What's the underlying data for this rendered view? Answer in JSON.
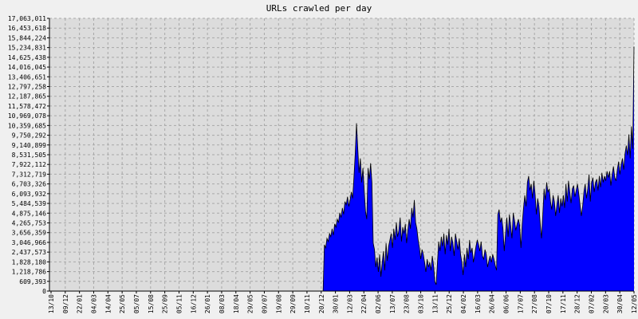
{
  "chart_data": {
    "type": "area",
    "title": "URLs crawled per day",
    "xlabel": "",
    "ylabel": "",
    "ylim": [
      0,
      17063011
    ],
    "grid": true,
    "colors": {
      "fill": "#0000ff",
      "outline": "#000000",
      "plot_bg": "#dcdcdc",
      "grid": "#a8a8a8",
      "page_bg": "#f0f0f0"
    },
    "y_ticks": [
      {
        "value": 0,
        "label": "0"
      },
      {
        "value": 609393,
        "label": "609,393"
      },
      {
        "value": 1218786,
        "label": "1,218,786"
      },
      {
        "value": 1828180,
        "label": "1,828,180"
      },
      {
        "value": 2437573,
        "label": "2,437,573"
      },
      {
        "value": 3046966,
        "label": "3,046,966"
      },
      {
        "value": 3656359,
        "label": "3,656,359"
      },
      {
        "value": 4265753,
        "label": "4,265,753"
      },
      {
        "value": 4875146,
        "label": "4,875,146"
      },
      {
        "value": 5484539,
        "label": "5,484,539"
      },
      {
        "value": 6093932,
        "label": "6,093,932"
      },
      {
        "value": 6703326,
        "label": "6,703,326"
      },
      {
        "value": 7312719,
        "label": "7,312,719"
      },
      {
        "value": 7922112,
        "label": "7,922,112"
      },
      {
        "value": 8531505,
        "label": "8,531,505"
      },
      {
        "value": 9140899,
        "label": "9,140,899"
      },
      {
        "value": 9750292,
        "label": "9,750,292"
      },
      {
        "value": 10359685,
        "label": "10,359,685"
      },
      {
        "value": 10969078,
        "label": "10,969,078"
      },
      {
        "value": 11578472,
        "label": "11,578,472"
      },
      {
        "value": 12187865,
        "label": "12,187,865"
      },
      {
        "value": 12797258,
        "label": "12,797,258"
      },
      {
        "value": 13406651,
        "label": "13,406,651"
      },
      {
        "value": 14016045,
        "label": "14,016,045"
      },
      {
        "value": 14625438,
        "label": "14,625,438"
      },
      {
        "value": 15234831,
        "label": "15,234,831"
      },
      {
        "value": 15844224,
        "label": "15,844,224"
      },
      {
        "value": 16453618,
        "label": "16,453,618"
      },
      {
        "value": 17063011,
        "label": "17,063,011"
      }
    ],
    "x_ticks": [
      "13/10",
      "09/12",
      "22/01",
      "04/03",
      "14/04",
      "25/05",
      "05/07",
      "15/08",
      "25/09",
      "05/11",
      "16/12",
      "26/01",
      "08/03",
      "18/04",
      "29/05",
      "09/07",
      "19/08",
      "29/09",
      "10/11",
      "20/12",
      "30/01",
      "12/03",
      "22/04",
      "02/06",
      "13/07",
      "23/08",
      "03/10",
      "13/11",
      "25/12",
      "04/02",
      "16/03",
      "26/04",
      "06/06",
      "17/07",
      "27/08",
      "07/10",
      "17/11",
      "28/12",
      "07/02",
      "20/03",
      "30/04",
      "12/05"
    ],
    "series": [
      {
        "values": [
          0,
          0,
          0,
          0,
          0,
          0,
          0,
          0,
          0,
          0,
          0,
          0,
          0,
          0,
          0,
          0,
          0,
          0,
          0,
          0,
          0,
          0,
          0,
          0,
          0,
          0,
          0,
          0,
          0,
          0,
          0,
          0,
          0,
          0,
          0,
          0,
          0,
          0,
          0,
          0,
          0,
          0,
          0,
          0,
          0,
          0,
          0,
          0,
          0,
          0,
          0,
          0,
          0,
          0,
          0,
          0,
          0,
          0,
          0,
          0,
          0,
          0,
          0,
          0,
          0,
          0,
          0,
          0,
          0,
          0,
          0,
          0,
          0,
          0,
          0,
          0,
          0,
          0,
          0,
          0,
          0,
          0,
          0,
          0,
          0,
          0,
          0,
          0,
          0,
          0,
          0,
          0,
          0,
          0,
          0,
          0,
          0,
          0,
          0,
          0,
          0,
          0,
          0,
          0,
          0,
          0,
          0,
          0,
          0,
          0,
          0,
          0,
          0,
          0,
          0,
          0,
          0,
          0,
          0,
          0,
          0,
          0,
          0,
          0,
          0,
          0,
          0,
          0,
          0,
          0,
          0,
          0,
          0,
          0,
          0,
          0,
          0,
          0,
          0,
          0,
          0,
          0,
          0,
          0,
          0,
          0,
          0,
          0,
          0,
          0,
          0,
          0,
          0,
          0,
          0,
          0,
          0,
          0,
          0,
          0,
          0,
          0,
          0,
          0,
          0,
          0,
          0,
          0,
          0,
          0,
          0,
          0,
          0,
          0,
          0,
          0,
          0,
          0,
          0,
          0,
          0,
          0,
          0,
          0,
          0,
          0,
          0,
          0,
          0,
          0,
          0,
          0,
          0,
          0,
          0,
          0,
          0,
          0,
          0,
          0,
          0,
          0,
          0,
          0,
          0,
          0,
          0,
          0,
          0,
          0,
          0,
          0,
          0,
          0,
          2900000,
          2700000,
          3300000,
          3100000,
          3600000,
          3400000,
          3900000,
          3500000,
          4200000,
          4000000,
          4500000,
          4300000,
          4900000,
          4600000,
          5200000,
          4800000,
          5600000,
          5400000,
          5900000,
          5300000,
          5700000,
          6200000,
          5800000,
          7100000,
          8600000,
          10500000,
          8900000,
          7400000,
          8300000,
          6800000,
          7700000,
          6300000,
          5000000,
          4500000,
          7700000,
          7000000,
          8000000,
          6800000,
          3000000,
          2600000,
          1500000,
          2100000,
          1200000,
          2300000,
          900000,
          1800000,
          2500000,
          1300000,
          3000000,
          1900000,
          2800000,
          3200000,
          3600000,
          2700000,
          3900000,
          3200000,
          4300000,
          3400000,
          3800000,
          4600000,
          3100000,
          4000000,
          3600000,
          4200000,
          3000000,
          3800000,
          4500000,
          3900000,
          5200000,
          4600000,
          5700000,
          4300000,
          3900000,
          3200000,
          2700000,
          2000000,
          2600000,
          2300000,
          1800000,
          1200000,
          2000000,
          1500000,
          1800000,
          1300000,
          2200000,
          1600000,
          600000,
          400000,
          1800000,
          3100000,
          2500000,
          3400000,
          2800000,
          3600000,
          2300000,
          3500000,
          2900000,
          3900000,
          2500000,
          3400000,
          3000000,
          2200000,
          3600000,
          3100000,
          2600000,
          3300000,
          2300000,
          1800000,
          1000000,
          2300000,
          1500000,
          2700000,
          2000000,
          3200000,
          2400000,
          2700000,
          1800000,
          2300000,
          2800000,
          3200000,
          2900000,
          2500000,
          3100000,
          2200000,
          2000000,
          2600000,
          2300000,
          1500000,
          1900000,
          2200000,
          1800000,
          2300000,
          2000000,
          1600000,
          1300000,
          4800000,
          5100000,
          4300000,
          4600000,
          3900000,
          2500000,
          3600000,
          4600000,
          3400000,
          4800000,
          4100000,
          3300000,
          4900000,
          4400000,
          3800000,
          4200000,
          4500000,
          4100000,
          2700000,
          4200000,
          5200000,
          6000000,
          5300000,
          6800000,
          7200000,
          6300000,
          6700000,
          5800000,
          6900000,
          6100000,
          4800000,
          5800000,
          5300000,
          4200000,
          3300000,
          4800000,
          6400000,
          5700000,
          6800000,
          6200000,
          6400000,
          5600000,
          5100000,
          6000000,
          5600000,
          4700000,
          5400000,
          6000000,
          4900000,
          5800000,
          5300000,
          6000000,
          5200000,
          6700000,
          5600000,
          6900000,
          6200000,
          5500000,
          6400000,
          6600000,
          5900000,
          6300000,
          6700000,
          6100000,
          5400000,
          4700000,
          5300000,
          6200000,
          6700000,
          5800000,
          6400000,
          7300000,
          5600000,
          6800000,
          7100000,
          6200000,
          6800000,
          7000000,
          6300000,
          7200000,
          6500000,
          7400000,
          6800000,
          7200000,
          6900000,
          7500000,
          7100000,
          7500000,
          6600000,
          7300000,
          7800000,
          7100000,
          6900000,
          7600000,
          8100000,
          7300000,
          7900000,
          8300000,
          7600000,
          8600000,
          9100000,
          8500000,
          9800000,
          8300000,
          10300000,
          8900000,
          15300000
        ]
      }
    ]
  }
}
